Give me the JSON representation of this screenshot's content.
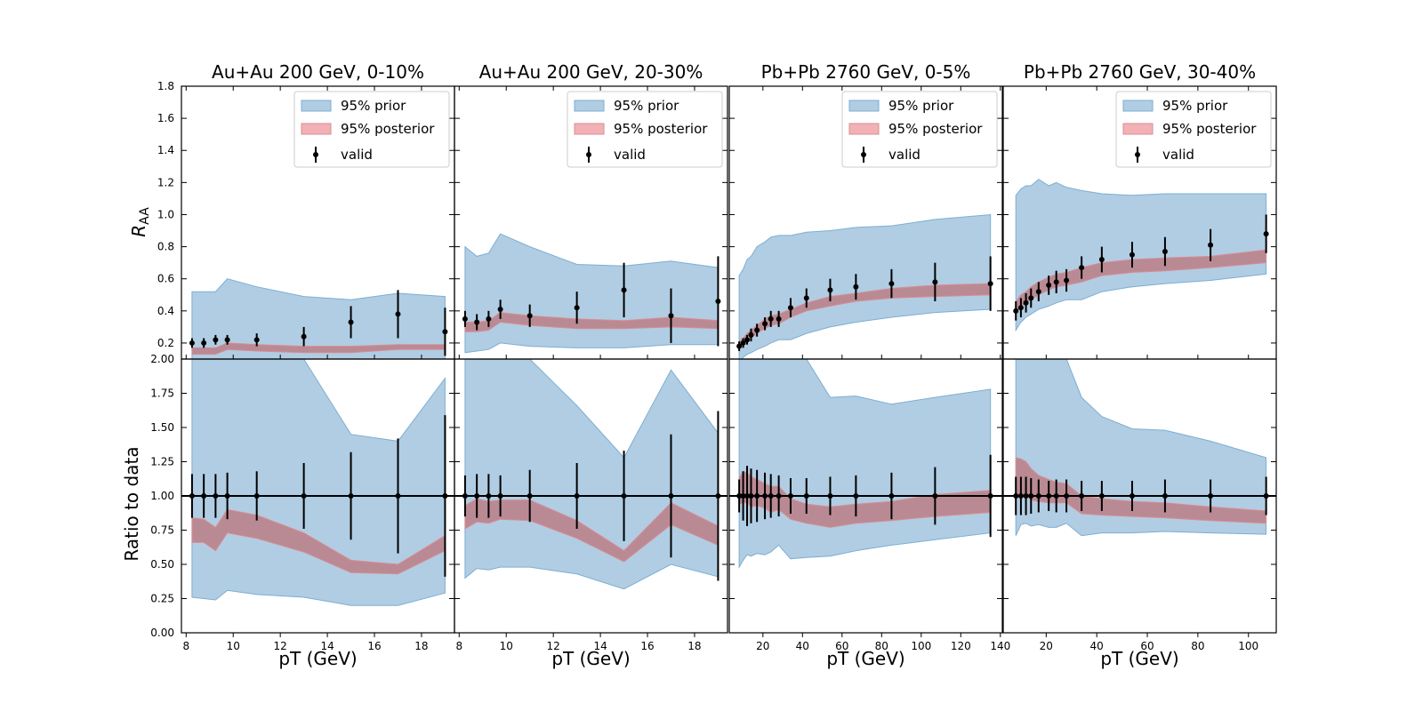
{
  "figure": {
    "ylabel_top": "R",
    "ylabel_top_sub": "AA",
    "ylabel_bottom": "Ratio to data",
    "legend": {
      "prior": "95% prior",
      "posterior": "95% posterior",
      "valid": "valid"
    }
  },
  "colors": {
    "prior_fill": "#b0cde3",
    "prior_edge": "#7eaed2",
    "post_fill": "#b9868f",
    "post_edge": "#d98c92",
    "data": "#000000"
  },
  "chart_data": [
    {
      "type": "line",
      "title": "Au+Au 200 GeV, 0-10%",
      "xlabel": "pT (GeV)",
      "xlim": [
        7.8,
        19.4
      ],
      "xticks": [
        8,
        10,
        12,
        14,
        16,
        18
      ],
      "xtick_labels": [
        "8",
        "10",
        "12",
        "14",
        "16",
        "18"
      ],
      "ylim_top": [
        0.1,
        1.8
      ],
      "yticks_top": [
        0.2,
        0.4,
        0.6,
        0.8,
        1.0,
        1.2,
        1.4,
        1.6,
        1.8
      ],
      "ytick_labels_top": [
        "0.2",
        "0.4",
        "0.6",
        "0.8",
        "1.0",
        "1.2",
        "1.4",
        "1.6",
        "1.8"
      ],
      "ylim_bottom": [
        0,
        2.0
      ],
      "yticks_bottom": [
        0,
        0.25,
        0.5,
        0.75,
        1.0,
        1.25,
        1.5,
        1.75,
        2.0
      ],
      "ytick_labels_bottom": [
        "0.00",
        "0.25",
        "0.50",
        "0.75",
        "1.00",
        "1.25",
        "1.50",
        "1.75",
        "2.00"
      ],
      "x": [
        8.25,
        8.75,
        9.25,
        9.75,
        11.0,
        13.0,
        15.0,
        17.0,
        19.0
      ],
      "data_y": [
        0.2,
        0.2,
        0.22,
        0.22,
        0.22,
        0.24,
        0.33,
        0.38,
        0.27
      ],
      "data_err": [
        0.03,
        0.03,
        0.03,
        0.03,
        0.04,
        0.06,
        0.1,
        0.15,
        0.15
      ],
      "prior_lo": [
        0.06,
        0.06,
        0.06,
        0.08,
        0.07,
        0.07,
        0.06,
        0.07,
        0.08
      ],
      "prior_hi": [
        0.52,
        0.52,
        0.52,
        0.6,
        0.55,
        0.49,
        0.47,
        0.51,
        0.49
      ],
      "post_lo": [
        0.13,
        0.13,
        0.13,
        0.16,
        0.15,
        0.14,
        0.14,
        0.16,
        0.16
      ],
      "post_hi": [
        0.17,
        0.17,
        0.17,
        0.2,
        0.19,
        0.18,
        0.18,
        0.19,
        0.19
      ],
      "ratio_err": [
        0.16,
        0.16,
        0.16,
        0.17,
        0.18,
        0.24,
        0.32,
        0.42,
        0.59
      ],
      "rprior_lo": [
        0.26,
        0.25,
        0.24,
        0.31,
        0.28,
        0.26,
        0.2,
        0.2,
        0.29
      ],
      "rprior_hi": [
        2.0,
        2.0,
        2.0,
        2.0,
        2.0,
        2.0,
        1.45,
        1.4,
        1.86
      ],
      "rpost_lo": [
        0.66,
        0.66,
        0.6,
        0.73,
        0.69,
        0.59,
        0.44,
        0.43,
        0.6
      ],
      "rpost_hi": [
        0.84,
        0.83,
        0.77,
        0.9,
        0.86,
        0.73,
        0.53,
        0.5,
        0.71
      ]
    },
    {
      "type": "line",
      "title": "Au+Au 200 GeV, 20-30%",
      "xlabel": "pT (GeV)",
      "xlim": [
        7.8,
        19.4
      ],
      "xticks": [
        8,
        10,
        12,
        14,
        16,
        18
      ],
      "xtick_labels": [
        "8",
        "10",
        "12",
        "14",
        "16",
        "18"
      ],
      "ylim_top": [
        0.1,
        1.8
      ],
      "yticks_top": [
        0.2,
        0.4,
        0.6,
        0.8,
        1.0,
        1.2,
        1.4,
        1.6,
        1.8
      ],
      "ytick_labels_top": [],
      "ylim_bottom": [
        0,
        2.0
      ],
      "yticks_bottom": [
        0,
        0.25,
        0.5,
        0.75,
        1.0,
        1.25,
        1.5,
        1.75,
        2.0
      ],
      "ytick_labels_bottom": [],
      "x": [
        8.25,
        8.75,
        9.25,
        9.75,
        11.0,
        13.0,
        15.0,
        17.0,
        19.0
      ],
      "data_y": [
        0.35,
        0.33,
        0.35,
        0.41,
        0.37,
        0.42,
        0.53,
        0.37,
        0.46
      ],
      "data_err": [
        0.05,
        0.05,
        0.05,
        0.06,
        0.07,
        0.1,
        0.17,
        0.17,
        0.28
      ],
      "prior_lo": [
        0.14,
        0.15,
        0.16,
        0.2,
        0.18,
        0.17,
        0.17,
        0.19,
        0.19
      ],
      "prior_hi": [
        0.8,
        0.74,
        0.76,
        0.88,
        0.8,
        0.69,
        0.68,
        0.71,
        0.67
      ],
      "post_lo": [
        0.27,
        0.27,
        0.28,
        0.33,
        0.31,
        0.29,
        0.29,
        0.3,
        0.29
      ],
      "post_hi": [
        0.33,
        0.33,
        0.34,
        0.39,
        0.37,
        0.35,
        0.34,
        0.36,
        0.34
      ],
      "ratio_err": [
        0.15,
        0.16,
        0.16,
        0.15,
        0.19,
        0.24,
        0.33,
        0.45,
        0.62
      ],
      "rprior_lo": [
        0.4,
        0.47,
        0.46,
        0.48,
        0.48,
        0.43,
        0.32,
        0.5,
        0.41
      ],
      "rprior_hi": [
        2.0,
        2.0,
        2.0,
        2.0,
        2.0,
        1.66,
        1.28,
        1.92,
        1.46
      ],
      "rpost_lo": [
        0.76,
        0.81,
        0.8,
        0.83,
        0.82,
        0.69,
        0.52,
        0.79,
        0.64
      ],
      "rpost_hi": [
        0.93,
        0.98,
        0.96,
        0.97,
        0.97,
        0.82,
        0.6,
        0.95,
        0.78
      ]
    },
    {
      "type": "line",
      "title": "Pb+Pb 2760 GeV, 0-5%",
      "xlabel": "pT (GeV)",
      "xlim": [
        3,
        141
      ],
      "xticks": [
        20,
        40,
        60,
        80,
        100,
        120,
        140
      ],
      "xtick_labels": [
        "20",
        "40",
        "60",
        "80",
        "100",
        "120",
        "140"
      ],
      "ylim_top": [
        0.1,
        1.8
      ],
      "yticks_top": [
        0.2,
        0.4,
        0.6,
        0.8,
        1.0,
        1.2,
        1.4,
        1.6,
        1.8
      ],
      "ytick_labels_top": [],
      "ylim_bottom": [
        0,
        2.0
      ],
      "yticks_bottom": [
        0,
        0.25,
        0.5,
        0.75,
        1.0,
        1.25,
        1.5,
        1.75,
        2.0
      ],
      "ytick_labels_bottom": [],
      "x": [
        8,
        10,
        12,
        14,
        17,
        21,
        24,
        28,
        34,
        42,
        54,
        67,
        85,
        107,
        135
      ],
      "data_y": [
        0.18,
        0.2,
        0.22,
        0.25,
        0.28,
        0.32,
        0.35,
        0.35,
        0.42,
        0.48,
        0.53,
        0.55,
        0.57,
        0.58,
        0.57
      ],
      "data_err": [
        0.03,
        0.03,
        0.03,
        0.04,
        0.04,
        0.04,
        0.05,
        0.05,
        0.06,
        0.06,
        0.07,
        0.08,
        0.09,
        0.12,
        0.17
      ],
      "prior_lo": [
        0.08,
        0.11,
        0.13,
        0.14,
        0.16,
        0.18,
        0.2,
        0.22,
        0.22,
        0.26,
        0.3,
        0.33,
        0.36,
        0.39,
        0.41
      ],
      "prior_hi": [
        0.62,
        0.66,
        0.72,
        0.74,
        0.8,
        0.83,
        0.86,
        0.87,
        0.87,
        0.89,
        0.9,
        0.92,
        0.93,
        0.97,
        1.0
      ],
      "post_lo": [
        0.17,
        0.19,
        0.21,
        0.23,
        0.26,
        0.29,
        0.31,
        0.32,
        0.36,
        0.4,
        0.43,
        0.46,
        0.48,
        0.49,
        0.5
      ],
      "post_hi": [
        0.21,
        0.23,
        0.26,
        0.28,
        0.31,
        0.35,
        0.37,
        0.38,
        0.41,
        0.45,
        0.49,
        0.51,
        0.54,
        0.56,
        0.57
      ],
      "ratio_err": [
        0.12,
        0.18,
        0.22,
        0.2,
        0.19,
        0.17,
        0.16,
        0.15,
        0.13,
        0.13,
        0.14,
        0.15,
        0.17,
        0.21,
        0.3
      ],
      "rprior_lo": [
        0.48,
        0.53,
        0.57,
        0.56,
        0.58,
        0.57,
        0.59,
        0.64,
        0.54,
        0.55,
        0.56,
        0.6,
        0.64,
        0.68,
        0.73
      ],
      "rprior_hi": [
        2.0,
        2.0,
        2.0,
        2.0,
        2.0,
        2.0,
        2.0,
        2.0,
        2.0,
        2.0,
        1.72,
        1.73,
        1.67,
        1.72,
        1.78
      ],
      "rpost_lo": [
        0.94,
        0.95,
        0.95,
        0.92,
        0.93,
        0.91,
        0.88,
        0.9,
        0.83,
        0.8,
        0.77,
        0.8,
        0.82,
        0.85,
        0.88
      ],
      "rpost_hi": [
        1.13,
        1.18,
        1.17,
        1.14,
        1.12,
        1.09,
        1.07,
        1.07,
        0.98,
        0.94,
        0.92,
        0.94,
        0.96,
        1.01,
        1.04
      ]
    },
    {
      "type": "line",
      "title": "Pb+Pb 2760 GeV, 30-40%",
      "xlabel": "pT (GeV)",
      "xlim": [
        3,
        111
      ],
      "xticks": [
        20,
        40,
        60,
        80,
        100
      ],
      "xtick_labels": [
        "20",
        "40",
        "60",
        "80",
        "100"
      ],
      "ylim_top": [
        0.1,
        1.8
      ],
      "yticks_top": [
        0.2,
        0.4,
        0.6,
        0.8,
        1.0,
        1.2,
        1.4,
        1.6,
        1.8
      ],
      "ytick_labels_top": [],
      "ylim_bottom": [
        0,
        2.0
      ],
      "yticks_bottom": [
        0,
        0.25,
        0.5,
        0.75,
        1.0,
        1.25,
        1.5,
        1.75,
        2.0
      ],
      "ytick_labels_bottom": [],
      "x": [
        8,
        10,
        12,
        14,
        17,
        21,
        24,
        28,
        34,
        42,
        54,
        67,
        85,
        107
      ],
      "data_y": [
        0.4,
        0.42,
        0.45,
        0.48,
        0.52,
        0.56,
        0.58,
        0.59,
        0.67,
        0.72,
        0.75,
        0.77,
        0.81,
        0.88
      ],
      "data_err": [
        0.06,
        0.06,
        0.06,
        0.06,
        0.06,
        0.06,
        0.07,
        0.07,
        0.07,
        0.08,
        0.08,
        0.09,
        0.1,
        0.12
      ],
      "prior_lo": [
        0.28,
        0.33,
        0.36,
        0.38,
        0.41,
        0.43,
        0.45,
        0.47,
        0.47,
        0.52,
        0.55,
        0.57,
        0.59,
        0.63
      ],
      "prior_hi": [
        1.12,
        1.16,
        1.18,
        1.18,
        1.22,
        1.18,
        1.2,
        1.17,
        1.15,
        1.13,
        1.12,
        1.13,
        1.13,
        1.13
      ],
      "post_lo": [
        0.39,
        0.42,
        0.45,
        0.47,
        0.5,
        0.53,
        0.55,
        0.56,
        0.58,
        0.62,
        0.64,
        0.65,
        0.67,
        0.7
      ],
      "post_hi": [
        0.46,
        0.5,
        0.52,
        0.55,
        0.58,
        0.61,
        0.63,
        0.64,
        0.67,
        0.7,
        0.72,
        0.73,
        0.74,
        0.78
      ],
      "ratio_err": [
        0.14,
        0.14,
        0.14,
        0.13,
        0.12,
        0.11,
        0.12,
        0.12,
        0.11,
        0.11,
        0.11,
        0.12,
        0.12,
        0.14
      ],
      "rprior_lo": [
        0.71,
        0.79,
        0.8,
        0.78,
        0.79,
        0.77,
        0.77,
        0.8,
        0.71,
        0.73,
        0.73,
        0.74,
        0.73,
        0.72
      ],
      "rprior_hi": [
        2.0,
        2.0,
        2.0,
        2.0,
        2.0,
        2.0,
        2.0,
        2.0,
        1.72,
        1.58,
        1.49,
        1.48,
        1.4,
        1.28
      ],
      "rpost_lo": [
        0.98,
        1.0,
        1.0,
        0.97,
        0.96,
        0.95,
        0.95,
        0.95,
        0.87,
        0.86,
        0.85,
        0.84,
        0.82,
        0.8
      ],
      "rpost_hi": [
        1.28,
        1.27,
        1.25,
        1.2,
        1.15,
        1.12,
        1.1,
        1.09,
        1.0,
        0.98,
        0.96,
        0.95,
        0.92,
        0.89
      ]
    }
  ]
}
